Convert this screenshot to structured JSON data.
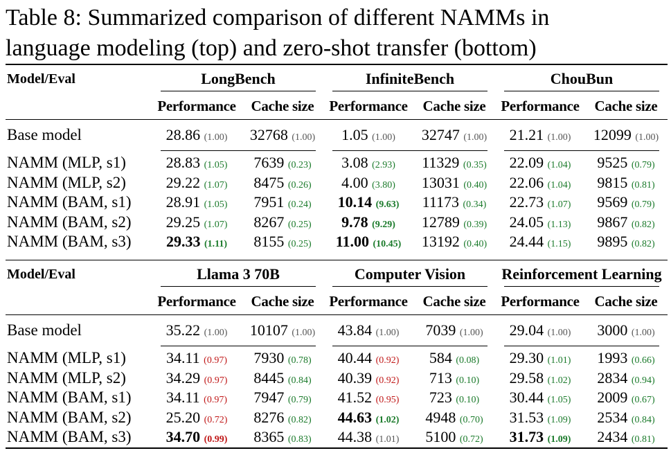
{
  "caption": {
    "line1": "Table 8: Summarized comparison of different NAMMs in",
    "line2": "language modeling (top) and zero-shot transfer (bottom)"
  },
  "colors": {
    "gray": "#555555",
    "green": "#1a7a2a",
    "red": "#c01818"
  },
  "top": {
    "corner": "Model/Eval",
    "groups": [
      "LongBench",
      "InfiniteBench",
      "ChouBun"
    ],
    "subheaders": [
      "Performance",
      "Cache size",
      "Performance",
      "Cache size",
      "Performance",
      "Cache size"
    ],
    "base": {
      "name": "Base model",
      "cells": [
        {
          "v": "28.86",
          "r": "(1.00)",
          "c": "gray"
        },
        {
          "v": "32768",
          "r": "(1.00)",
          "c": "gray"
        },
        {
          "v": "1.05",
          "r": "(1.00)",
          "c": "gray"
        },
        {
          "v": "32747",
          "r": "(1.00)",
          "c": "gray"
        },
        {
          "v": "21.21",
          "r": "(1.00)",
          "c": "gray"
        },
        {
          "v": "12099",
          "r": "(1.00)",
          "c": "gray"
        }
      ]
    },
    "rows": [
      {
        "name": "NAMM (MLP, s1)",
        "cells": [
          {
            "v": "28.83",
            "r": "(1.05)",
            "c": "green"
          },
          {
            "v": "7639",
            "r": "(0.23)",
            "c": "green"
          },
          {
            "v": "3.08",
            "r": "(2.93)",
            "c": "green"
          },
          {
            "v": "11329",
            "r": "(0.35)",
            "c": "green"
          },
          {
            "v": "22.09",
            "r": "(1.04)",
            "c": "green"
          },
          {
            "v": "9525",
            "r": "(0.79)",
            "c": "green"
          }
        ]
      },
      {
        "name": "NAMM (MLP, s2)",
        "cells": [
          {
            "v": "29.22",
            "r": "(1.07)",
            "c": "green"
          },
          {
            "v": "8475",
            "r": "(0.26)",
            "c": "green"
          },
          {
            "v": "4.00",
            "r": "(3.80)",
            "c": "green"
          },
          {
            "v": "13031",
            "r": "(0.40)",
            "c": "green"
          },
          {
            "v": "22.06",
            "r": "(1.04)",
            "c": "green"
          },
          {
            "v": "9815",
            "r": "(0.81)",
            "c": "green"
          }
        ]
      },
      {
        "name": "NAMM (BAM, s1)",
        "cells": [
          {
            "v": "28.91",
            "r": "(1.05)",
            "c": "green"
          },
          {
            "v": "7951",
            "r": "(0.24)",
            "c": "green"
          },
          {
            "v": "10.14",
            "r": "(9.63)",
            "c": "green",
            "b": true
          },
          {
            "v": "11173",
            "r": "(0.34)",
            "c": "green"
          },
          {
            "v": "22.73",
            "r": "(1.07)",
            "c": "green"
          },
          {
            "v": "9569",
            "r": "(0.79)",
            "c": "green"
          }
        ]
      },
      {
        "name": "NAMM (BAM, s2)",
        "cells": [
          {
            "v": "29.25",
            "r": "(1.07)",
            "c": "green"
          },
          {
            "v": "8267",
            "r": "(0.25)",
            "c": "green"
          },
          {
            "v": "9.78",
            "r": "(9.29)",
            "c": "green",
            "b": true
          },
          {
            "v": "12789",
            "r": "(0.39)",
            "c": "green"
          },
          {
            "v": "24.05",
            "r": "(1.13)",
            "c": "green"
          },
          {
            "v": "9867",
            "r": "(0.82)",
            "c": "green"
          }
        ]
      },
      {
        "name": "NAMM (BAM, s3)",
        "cells": [
          {
            "v": "29.33",
            "r": "(1.11)",
            "c": "green",
            "b": true
          },
          {
            "v": "8155",
            "r": "(0.25)",
            "c": "green"
          },
          {
            "v": "11.00",
            "r": "(10.45)",
            "c": "green",
            "b": true
          },
          {
            "v": "13192",
            "r": "(0.40)",
            "c": "green"
          },
          {
            "v": "24.44",
            "r": "(1.15)",
            "c": "green"
          },
          {
            "v": "9895",
            "r": "(0.82)",
            "c": "green"
          }
        ]
      }
    ]
  },
  "bottom": {
    "corner": "Model/Eval",
    "groups": [
      "Llama 3 70B",
      "Computer Vision",
      "Reinforcement Learning"
    ],
    "subheaders": [
      "Performance",
      "Cache size",
      "Performance",
      "Cache size",
      "Performance",
      "Cache size"
    ],
    "base": {
      "name": "Base model",
      "cells": [
        {
          "v": "35.22",
          "r": "(1.00)",
          "c": "gray"
        },
        {
          "v": "10107",
          "r": "(1.00)",
          "c": "gray"
        },
        {
          "v": "43.84",
          "r": "(1.00)",
          "c": "gray"
        },
        {
          "v": "7039",
          "r": "(1.00)",
          "c": "gray"
        },
        {
          "v": "29.04",
          "r": "(1.00)",
          "c": "gray"
        },
        {
          "v": "3000",
          "r": "(1.00)",
          "c": "gray"
        }
      ]
    },
    "rows": [
      {
        "name": "NAMM (MLP, s1)",
        "cells": [
          {
            "v": "34.11",
            "r": "(0.97)",
            "c": "red"
          },
          {
            "v": "7930",
            "r": "(0.78)",
            "c": "green"
          },
          {
            "v": "40.44",
            "r": "(0.92)",
            "c": "red"
          },
          {
            "v": "584",
            "r": "(0.08)",
            "c": "green"
          },
          {
            "v": "29.30",
            "r": "(1.01)",
            "c": "green"
          },
          {
            "v": "1993",
            "r": "(0.66)",
            "c": "green"
          }
        ]
      },
      {
        "name": "NAMM (MLP, s2)",
        "cells": [
          {
            "v": "34.29",
            "r": "(0.97)",
            "c": "red"
          },
          {
            "v": "8445",
            "r": "(0.84)",
            "c": "green"
          },
          {
            "v": "40.39",
            "r": "(0.92)",
            "c": "red"
          },
          {
            "v": "713",
            "r": "(0.10)",
            "c": "green"
          },
          {
            "v": "29.58",
            "r": "(1.02)",
            "c": "green"
          },
          {
            "v": "2834",
            "r": "(0.94)",
            "c": "green"
          }
        ]
      },
      {
        "name": "NAMM (BAM, s1)",
        "cells": [
          {
            "v": "34.11",
            "r": "(0.97)",
            "c": "red"
          },
          {
            "v": "7947",
            "r": "(0.79)",
            "c": "green"
          },
          {
            "v": "41.52",
            "r": "(0.95)",
            "c": "red"
          },
          {
            "v": "723",
            "r": "(0.10)",
            "c": "green"
          },
          {
            "v": "30.44",
            "r": "(1.05)",
            "c": "green"
          },
          {
            "v": "2009",
            "r": "(0.67)",
            "c": "green"
          }
        ]
      },
      {
        "name": "NAMM (BAM, s2)",
        "cells": [
          {
            "v": "25.20",
            "r": "(0.72)",
            "c": "red"
          },
          {
            "v": "8276",
            "r": "(0.82)",
            "c": "green"
          },
          {
            "v": "44.63",
            "r": "(1.02)",
            "c": "green",
            "b": true
          },
          {
            "v": "4948",
            "r": "(0.70)",
            "c": "green"
          },
          {
            "v": "31.53",
            "r": "(1.09)",
            "c": "green"
          },
          {
            "v": "2534",
            "r": "(0.84)",
            "c": "green"
          }
        ]
      },
      {
        "name": "NAMM (BAM, s3)",
        "cells": [
          {
            "v": "34.70",
            "r": "(0.99)",
            "c": "red",
            "b": true
          },
          {
            "v": "8365",
            "r": "(0.83)",
            "c": "green"
          },
          {
            "v": "44.38",
            "r": "(1.01)",
            "c": "gray"
          },
          {
            "v": "5100",
            "r": "(0.72)",
            "c": "green"
          },
          {
            "v": "31.73",
            "r": "(1.09)",
            "c": "green",
            "b": true
          },
          {
            "v": "2434",
            "r": "(0.81)",
            "c": "green"
          }
        ]
      }
    ]
  }
}
